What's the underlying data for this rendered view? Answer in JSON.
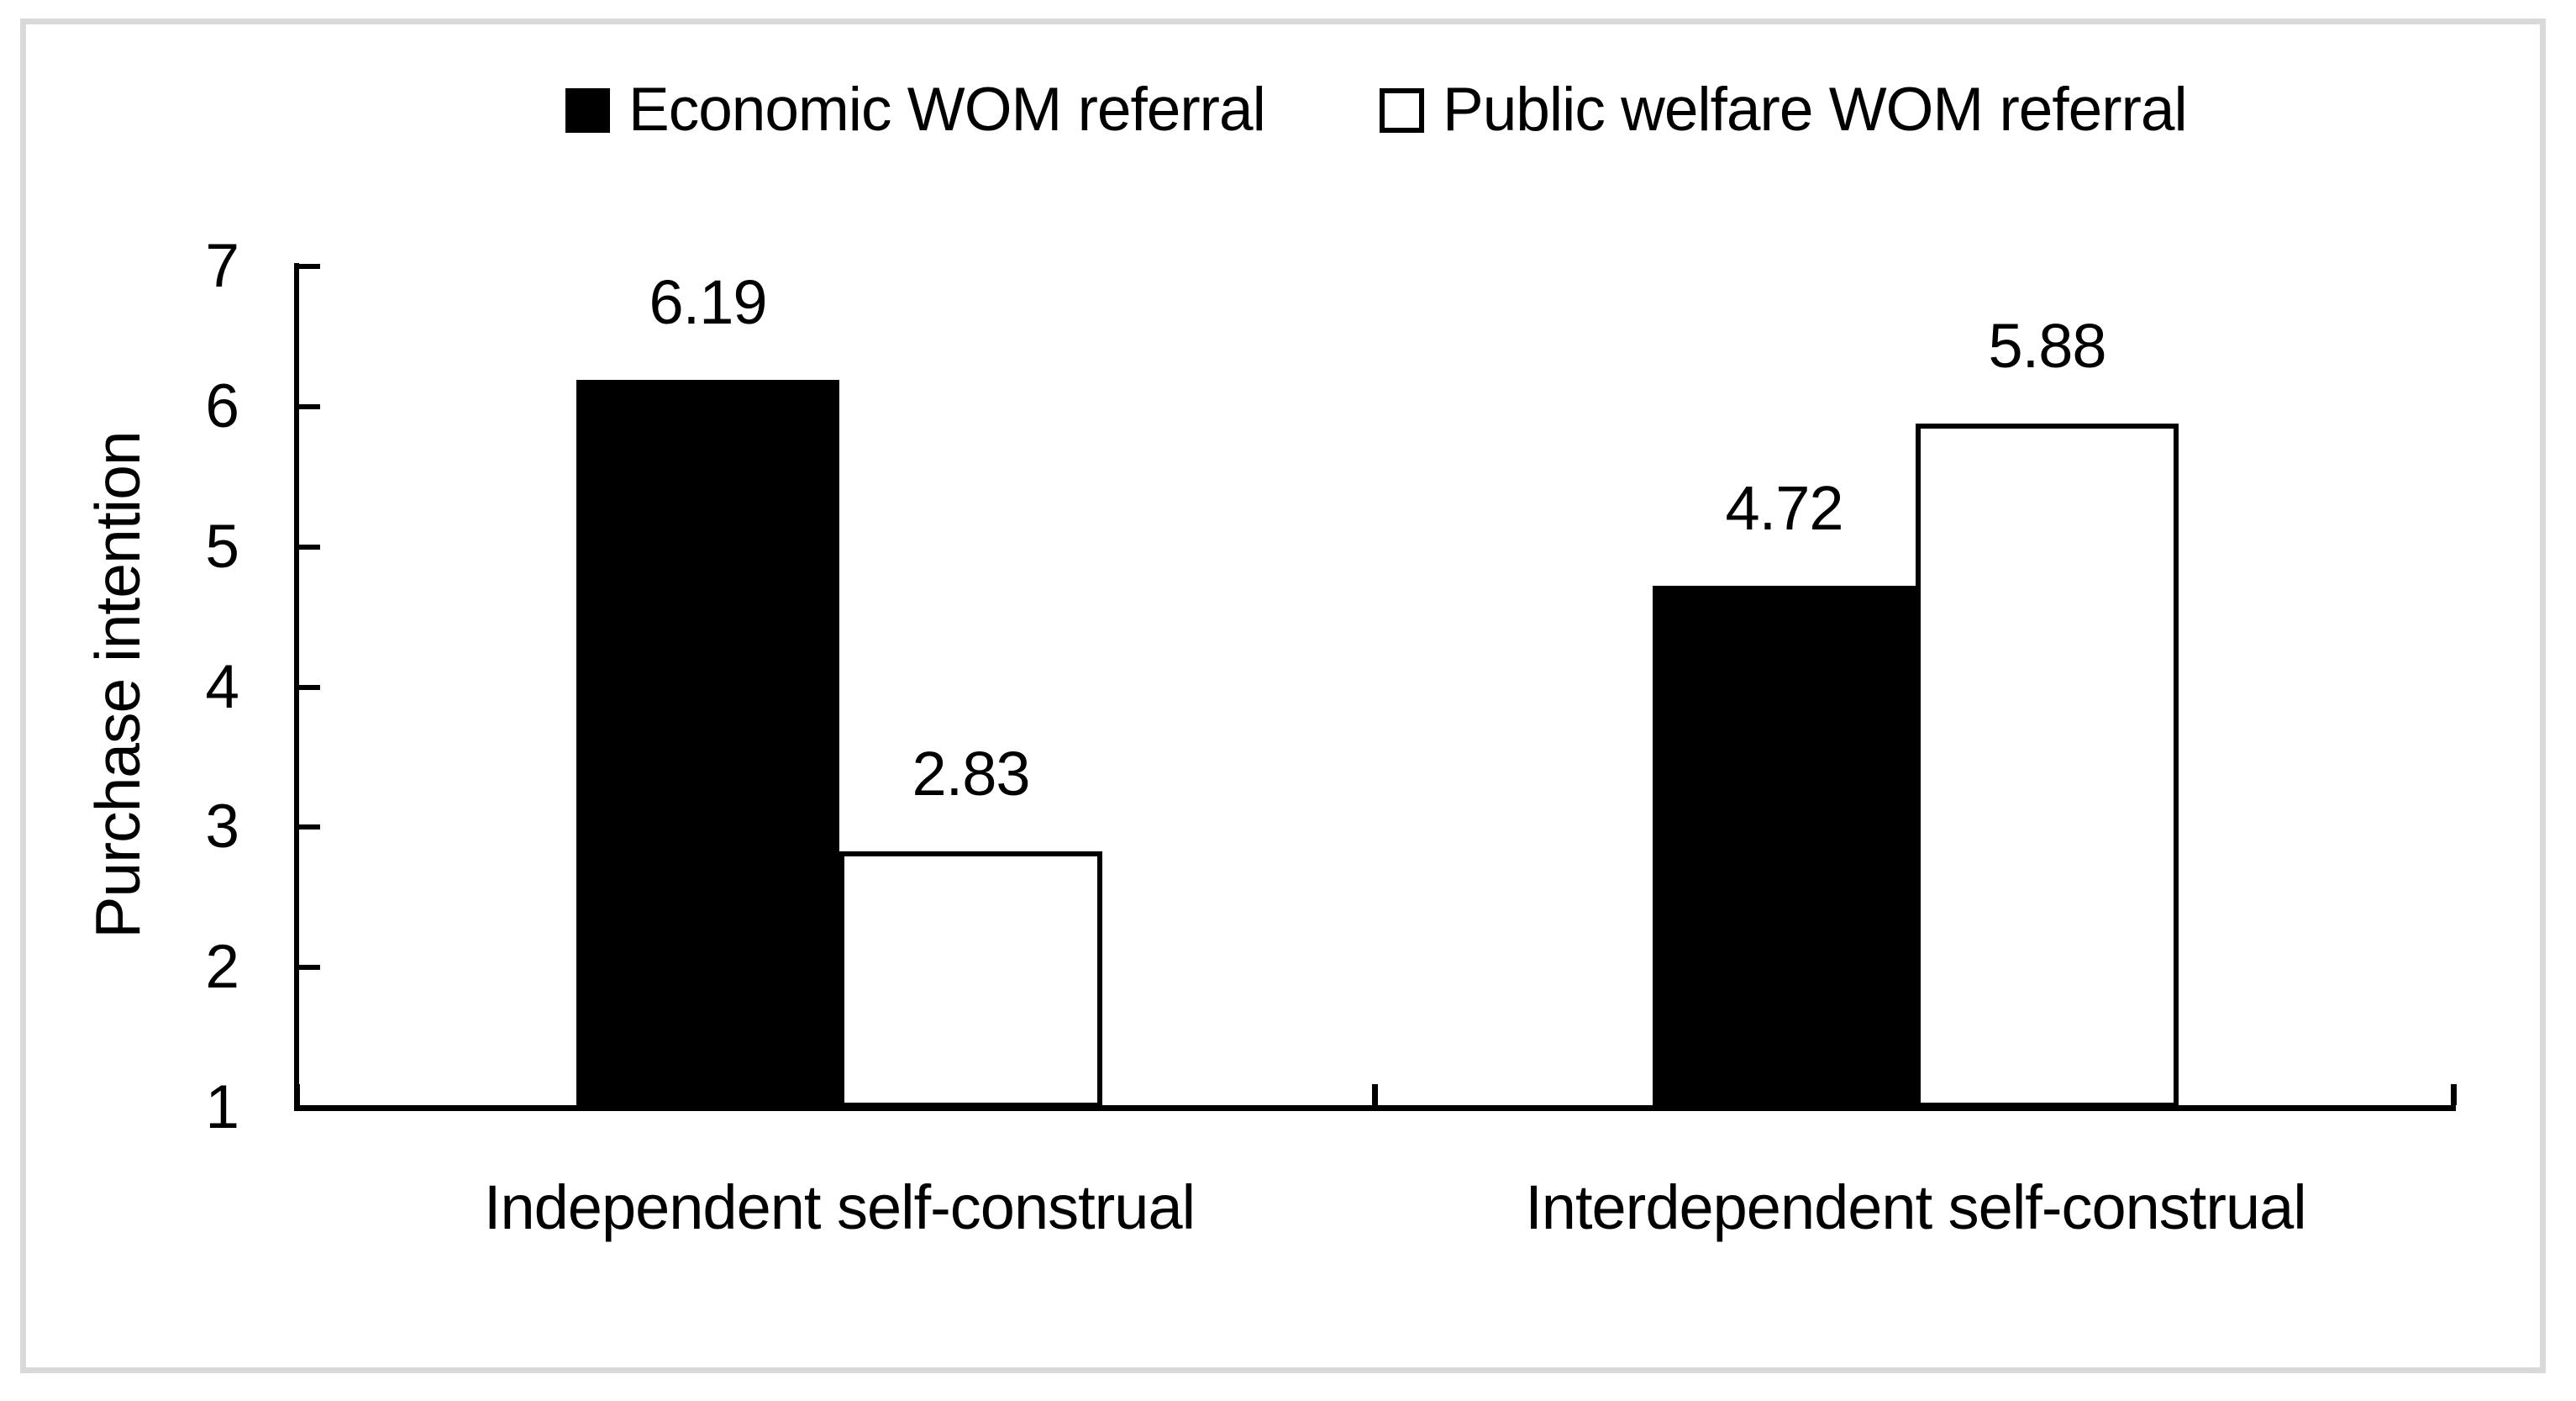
{
  "chart_data": {
    "type": "bar",
    "title": "",
    "ylabel": "Purchase intention",
    "xlabel": "",
    "categories": [
      "Independent self-construal",
      "Interdependent self-construal"
    ],
    "series": [
      {
        "name": "Economic WOM referral",
        "color": "#000000",
        "fill": "solid",
        "values": [
          6.19,
          4.72
        ]
      },
      {
        "name": "Public welfare WOM referral",
        "color": "#ffffff",
        "fill": "outlined",
        "values": [
          2.83,
          5.88
        ]
      }
    ],
    "data_labels": [
      [
        "6.19",
        "2.83"
      ],
      [
        "4.72",
        "5.88"
      ]
    ],
    "ylim": [
      1,
      7
    ],
    "y_ticks": [
      1,
      2,
      3,
      4,
      5,
      6,
      7
    ],
    "grid": false,
    "legend_position": "top-center",
    "tick_style": "inside",
    "axis_color": "#000000",
    "bar_outline_color": "#000000",
    "frame_color": "#d9d9d9",
    "background_color": "#ffffff"
  }
}
